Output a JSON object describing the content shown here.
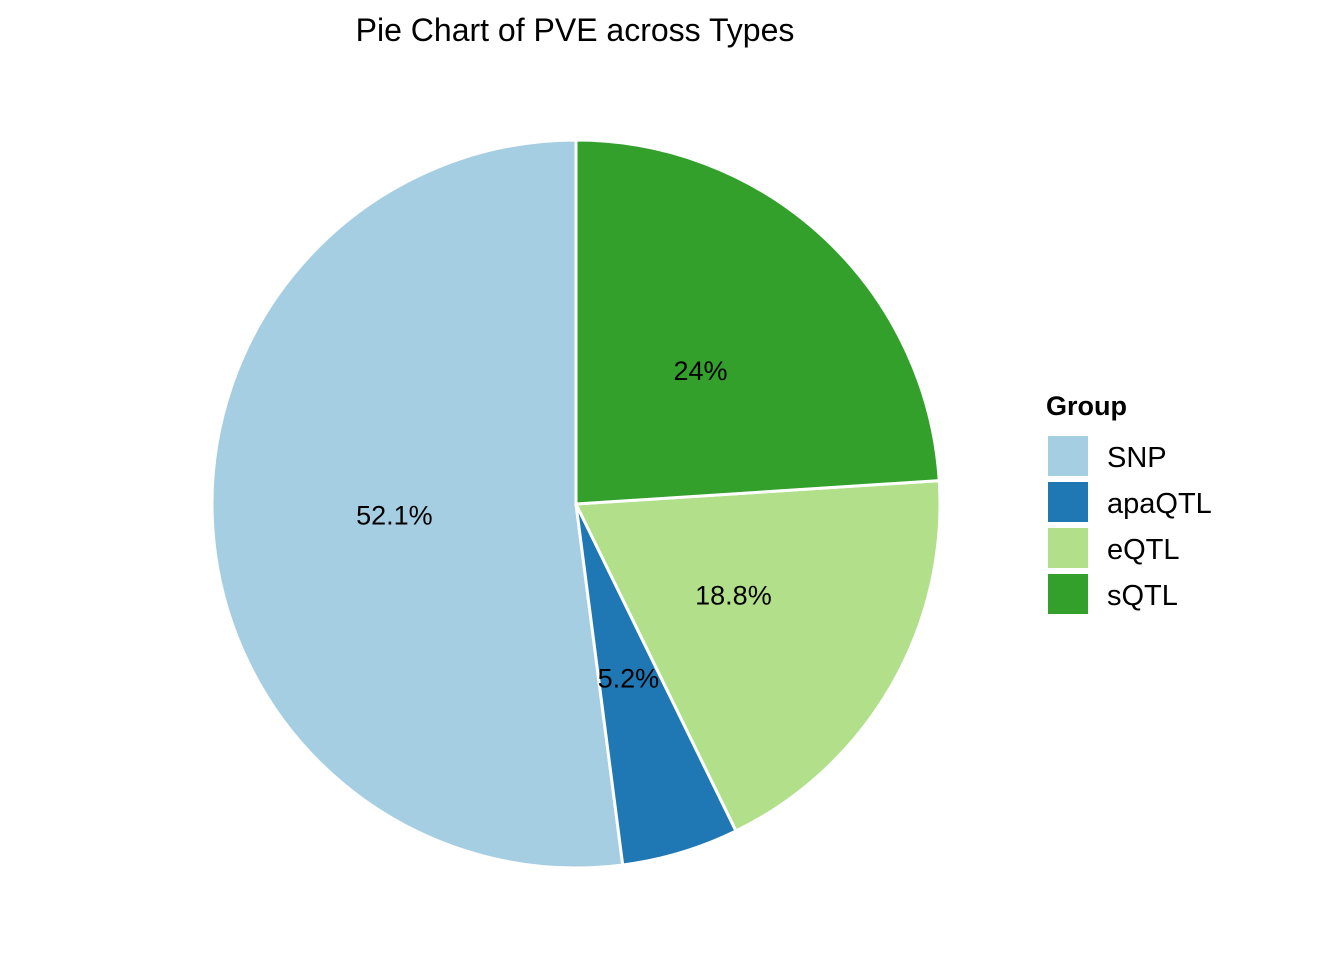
{
  "chart_data": {
    "type": "pie",
    "title": "Pie Chart of PVE across Types",
    "legend": {
      "title": "Group",
      "placement": "right"
    },
    "slices": [
      {
        "name": "SNP",
        "value": 52.1,
        "label": "52.1%",
        "color": "#a6cee3"
      },
      {
        "name": "apaQTL",
        "value": 5.2,
        "label": "5.2%",
        "color": "#1f78b4"
      },
      {
        "name": "eQTL",
        "value": 18.8,
        "label": "18.8%",
        "color": "#b2df8a"
      },
      {
        "name": "sQTL",
        "value": 24,
        "label": "24%",
        "color": "#33a02c"
      }
    ],
    "slice_border_color": "#ffffff"
  }
}
